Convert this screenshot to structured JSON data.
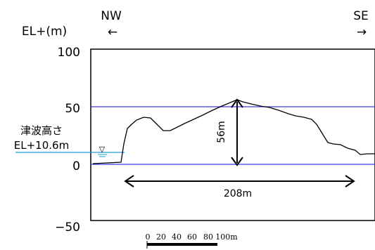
{
  "direction": {
    "left_label": "NW",
    "left_arrow": "←",
    "right_label": "SE",
    "right_arrow": "→"
  },
  "yaxis": {
    "title": "EL+(m)",
    "ticks": [
      {
        "value": 100,
        "label": "100"
      },
      {
        "value": 50,
        "label": "50"
      },
      {
        "value": 0,
        "label": "0"
      },
      {
        "value": -50,
        "label": "−50"
      }
    ]
  },
  "tsunami": {
    "line1": "津波高さ",
    "line2": "EL+10.6m",
    "marker": "▽"
  },
  "dimensions": {
    "height_label": "56m",
    "width_label": "208m"
  },
  "scale_bar": {
    "ticks": [
      "0",
      "20",
      "40",
      "60",
      "80",
      "100m"
    ]
  },
  "colors": {
    "reference_line": "#3a3ae0",
    "water": "#1e9bd7",
    "profile": "#000000"
  }
}
